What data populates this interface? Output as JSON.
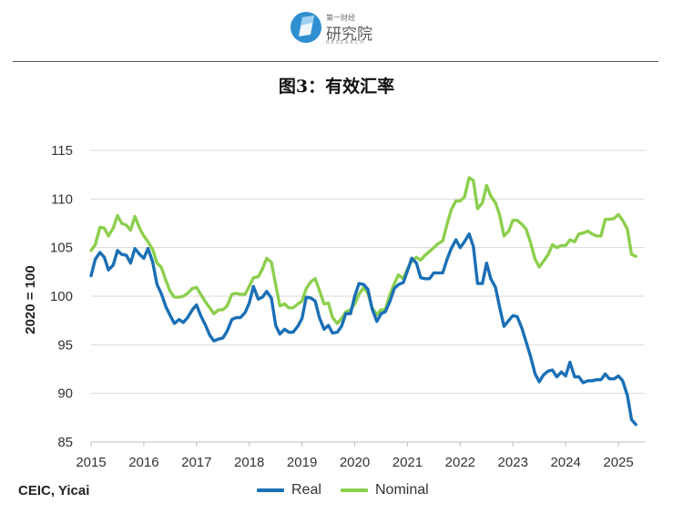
{
  "header": {
    "logo_top": "第一财经",
    "logo_main": "研究院",
    "logo_sub": "RESEARCH",
    "figure_title": "图3：有效汇率"
  },
  "footer": {
    "source": "CEIC, Yicai"
  },
  "colors": {
    "real": "#1a6fb5",
    "nominal": "#8ccf4e",
    "logo": "#2f8fd0"
  },
  "chart_data": {
    "type": "line",
    "title": "图3：有效汇率",
    "xlabel": "",
    "ylabel": "2020 = 100",
    "ylim": [
      85,
      115
    ],
    "yticks": [
      85,
      90,
      95,
      100,
      105,
      110,
      115
    ],
    "xlim": [
      2015,
      2025.5
    ],
    "xticks": [
      2015,
      2016,
      2017,
      2018,
      2019,
      2020,
      2021,
      2022,
      2023,
      2024,
      2025
    ],
    "grid": true,
    "legend": "bottom-center",
    "series": [
      {
        "name": "Real",
        "x": [
          2015.0,
          2015.08,
          2015.17,
          2015.25,
          2015.33,
          2015.42,
          2015.5,
          2015.58,
          2015.67,
          2015.75,
          2015.83,
          2015.92,
          2016.0,
          2016.08,
          2016.17,
          2016.25,
          2016.33,
          2016.42,
          2016.5,
          2016.58,
          2016.67,
          2016.75,
          2016.83,
          2016.92,
          2017.0,
          2017.08,
          2017.17,
          2017.25,
          2017.33,
          2017.42,
          2017.5,
          2017.58,
          2017.67,
          2017.75,
          2017.83,
          2017.92,
          2018.0,
          2018.08,
          2018.17,
          2018.25,
          2018.33,
          2018.42,
          2018.5,
          2018.58,
          2018.67,
          2018.75,
          2018.83,
          2018.92,
          2019.0,
          2019.08,
          2019.17,
          2019.25,
          2019.33,
          2019.42,
          2019.5,
          2019.58,
          2019.67,
          2019.75,
          2019.83,
          2019.92,
          2020.0,
          2020.08,
          2020.17,
          2020.25,
          2020.33,
          2020.42,
          2020.5,
          2020.58,
          2020.67,
          2020.75,
          2020.83,
          2020.92,
          2021.0,
          2021.08,
          2021.17,
          2021.25,
          2021.33,
          2021.42,
          2021.5,
          2021.58,
          2021.67,
          2021.75,
          2021.83,
          2021.92,
          2022.0,
          2022.08,
          2022.17,
          2022.25,
          2022.33,
          2022.42,
          2022.5,
          2022.58,
          2022.67,
          2022.75,
          2022.83,
          2022.92,
          2023.0,
          2023.08,
          2023.17,
          2023.25,
          2023.33,
          2023.42,
          2023.5,
          2023.58,
          2023.67,
          2023.75,
          2023.83,
          2023.92,
          2024.0,
          2024.08,
          2024.17,
          2024.25,
          2024.33,
          2024.42,
          2024.5,
          2024.58,
          2024.67,
          2024.75,
          2024.83,
          2024.92,
          2025.0,
          2025.08,
          2025.17,
          2025.25,
          2025.33
        ],
        "values": [
          102.1,
          103.8,
          104.5,
          104.0,
          102.7,
          103.2,
          104.7,
          104.3,
          104.2,
          103.4,
          104.9,
          104.3,
          103.9,
          104.9,
          103.5,
          101.2,
          100.3,
          98.9,
          98.0,
          97.2,
          97.6,
          97.3,
          97.8,
          98.6,
          99.1,
          98.0,
          97.0,
          96.0,
          95.4,
          95.6,
          95.7,
          96.4,
          97.6,
          97.8,
          97.8,
          98.3,
          99.3,
          101.0,
          99.7,
          99.9,
          100.5,
          99.8,
          97.0,
          96.1,
          96.6,
          96.3,
          96.3,
          96.9,
          97.7,
          99.9,
          99.8,
          99.5,
          97.8,
          96.6,
          97.0,
          96.2,
          96.3,
          96.9,
          98.2,
          98.2,
          100.0,
          101.3,
          101.2,
          100.7,
          98.7,
          97.4,
          98.2,
          98.4,
          99.5,
          100.8,
          101.2,
          101.4,
          102.6,
          103.9,
          103.4,
          101.9,
          101.8,
          101.8,
          102.4,
          102.4,
          102.4,
          103.8,
          104.9,
          105.8,
          105.0,
          105.6,
          106.4,
          105.1,
          101.3,
          101.3,
          103.4,
          101.8,
          100.9,
          98.8,
          96.9,
          97.5,
          98.0,
          97.9,
          96.7,
          95.3,
          93.9,
          92.0,
          91.2,
          91.9,
          92.3,
          92.4,
          91.7,
          92.2,
          91.8,
          93.2,
          91.7,
          91.7,
          91.1,
          91.3,
          91.3,
          91.4,
          91.4,
          92.0,
          91.5,
          91.5,
          91.8,
          91.3,
          89.8,
          87.3,
          86.8
        ]
      },
      {
        "name": "Nominal",
        "x": [
          2015.0,
          2015.08,
          2015.17,
          2015.25,
          2015.33,
          2015.42,
          2015.5,
          2015.58,
          2015.67,
          2015.75,
          2015.83,
          2015.92,
          2016.0,
          2016.08,
          2016.17,
          2016.25,
          2016.33,
          2016.42,
          2016.5,
          2016.58,
          2016.67,
          2016.75,
          2016.83,
          2016.92,
          2017.0,
          2017.08,
          2017.17,
          2017.25,
          2017.33,
          2017.42,
          2017.5,
          2017.58,
          2017.67,
          2017.75,
          2017.83,
          2017.92,
          2018.0,
          2018.08,
          2018.17,
          2018.25,
          2018.33,
          2018.42,
          2018.5,
          2018.58,
          2018.67,
          2018.75,
          2018.83,
          2018.92,
          2019.0,
          2019.08,
          2019.17,
          2019.25,
          2019.33,
          2019.42,
          2019.5,
          2019.58,
          2019.67,
          2019.75,
          2019.83,
          2019.92,
          2020.0,
          2020.08,
          2020.17,
          2020.25,
          2020.33,
          2020.42,
          2020.5,
          2020.58,
          2020.67,
          2020.75,
          2020.83,
          2020.92,
          2021.0,
          2021.08,
          2021.17,
          2021.25,
          2021.33,
          2021.42,
          2021.5,
          2021.58,
          2021.67,
          2021.75,
          2021.83,
          2021.92,
          2022.0,
          2022.08,
          2022.17,
          2022.25,
          2022.33,
          2022.42,
          2022.5,
          2022.58,
          2022.67,
          2022.75,
          2022.83,
          2022.92,
          2023.0,
          2023.08,
          2023.17,
          2023.25,
          2023.33,
          2023.42,
          2023.5,
          2023.58,
          2023.67,
          2023.75,
          2023.83,
          2023.92,
          2024.0,
          2024.08,
          2024.17,
          2024.25,
          2024.33,
          2024.42,
          2024.5,
          2024.58,
          2024.67,
          2024.75,
          2024.83,
          2024.92,
          2025.0,
          2025.08,
          2025.17,
          2025.25,
          2025.33
        ],
        "values": [
          104.7,
          105.3,
          107.1,
          107.0,
          106.2,
          107.0,
          108.3,
          107.5,
          107.3,
          106.8,
          108.2,
          107.0,
          106.2,
          105.6,
          104.8,
          103.4,
          103.0,
          101.6,
          100.5,
          99.9,
          99.9,
          100.0,
          100.3,
          100.8,
          100.9,
          100.2,
          99.4,
          98.8,
          98.2,
          98.6,
          98.6,
          99.0,
          100.2,
          100.3,
          100.2,
          100.2,
          101.0,
          101.9,
          102.0,
          102.8,
          103.9,
          103.5,
          101.2,
          99.0,
          99.2,
          98.8,
          98.8,
          99.2,
          99.5,
          100.8,
          101.5,
          101.8,
          100.6,
          99.2,
          99.3,
          97.8,
          97.2,
          97.7,
          98.4,
          98.6,
          99.2,
          100.2,
          100.9,
          100.3,
          98.8,
          98.1,
          98.6,
          98.6,
          100.2,
          101.3,
          102.2,
          101.8,
          102.8,
          103.6,
          104.0,
          103.7,
          104.2,
          104.6,
          105.0,
          105.4,
          105.7,
          107.4,
          108.9,
          109.8,
          109.8,
          110.2,
          112.2,
          111.9,
          109.0,
          109.6,
          111.4,
          110.3,
          109.6,
          108.3,
          106.2,
          106.7,
          107.8,
          107.8,
          107.4,
          106.9,
          105.6,
          103.8,
          103.0,
          103.6,
          104.3,
          105.3,
          105.0,
          105.2,
          105.2,
          105.8,
          105.6,
          106.4,
          106.5,
          106.7,
          106.4,
          106.2,
          106.2,
          107.9,
          107.9,
          108.0,
          108.4,
          107.8,
          106.9,
          104.3,
          104.1
        ]
      }
    ]
  }
}
